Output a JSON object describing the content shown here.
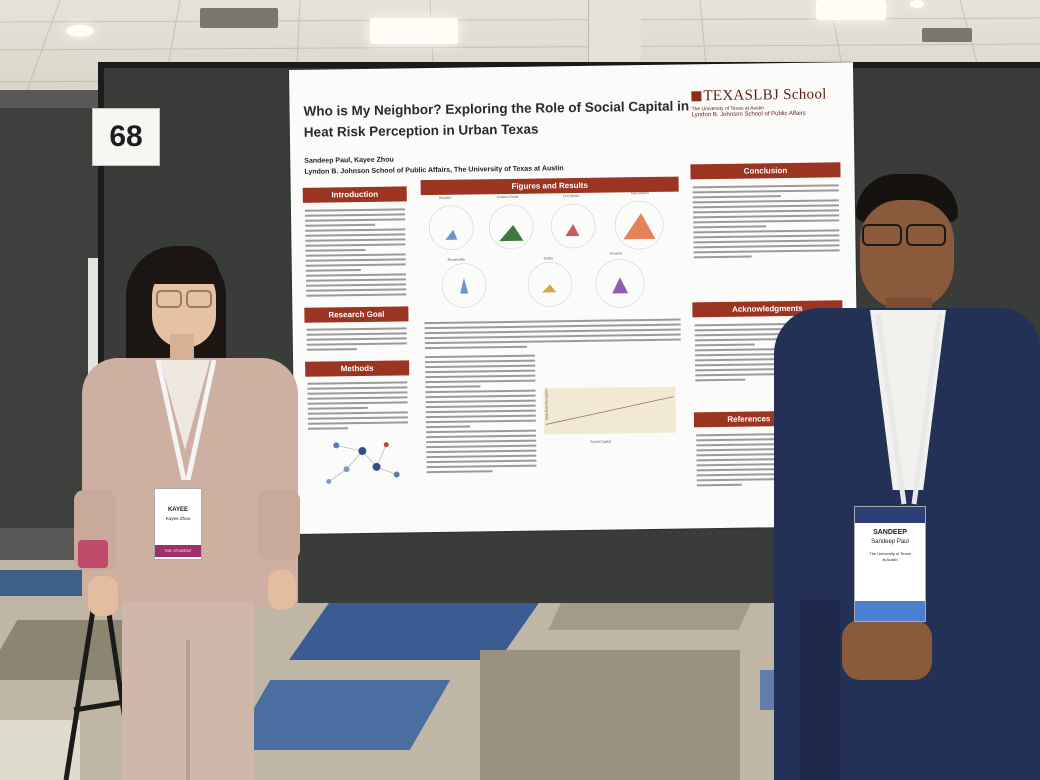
{
  "booth": {
    "number": "68"
  },
  "poster": {
    "title": "Who is My Neighbor? Exploring the Role of Social Capital in Heat Risk Perception in Urban Texas",
    "authors": "Sandeep Paul, Kayee Zhou",
    "affiliation": "Lyndon B. Johnson School of Public Affairs, The University of Texas at Austin",
    "logo": {
      "main": "TEXASLBJ School",
      "sub1": "The University of Texas at Austin",
      "sub2": "Lyndon B. Johnson School of Public Affairs"
    },
    "sections": {
      "introduction": "Introduction",
      "research_goal": "Research Goal",
      "methods": "Methods",
      "figures": "Figures and Results",
      "conclusion": "Conclusion",
      "acknowledgments": "Acknowledgments",
      "references": "References"
    },
    "radar_labels": [
      "Houston",
      "Corpus Christi",
      "Fort Worth",
      "San Antonio",
      "Brownsville",
      "Dallas",
      "Houston"
    ],
    "plot_labels": {
      "y": "Heat Risk Perception",
      "x": "Social Capital"
    }
  },
  "badges": {
    "left": {
      "first": "KAYEE",
      "full": "Kayee Zhou",
      "ribbon": "THE STUDENT"
    },
    "right": {
      "first": "SANDEEP",
      "full": "Sandeep Paul",
      "org1": "The University of Texas",
      "org2": "at Austin"
    }
  },
  "colors": {
    "accent": "#9b3522",
    "board": "#3a3c39",
    "poster": "#fbfbf9"
  }
}
